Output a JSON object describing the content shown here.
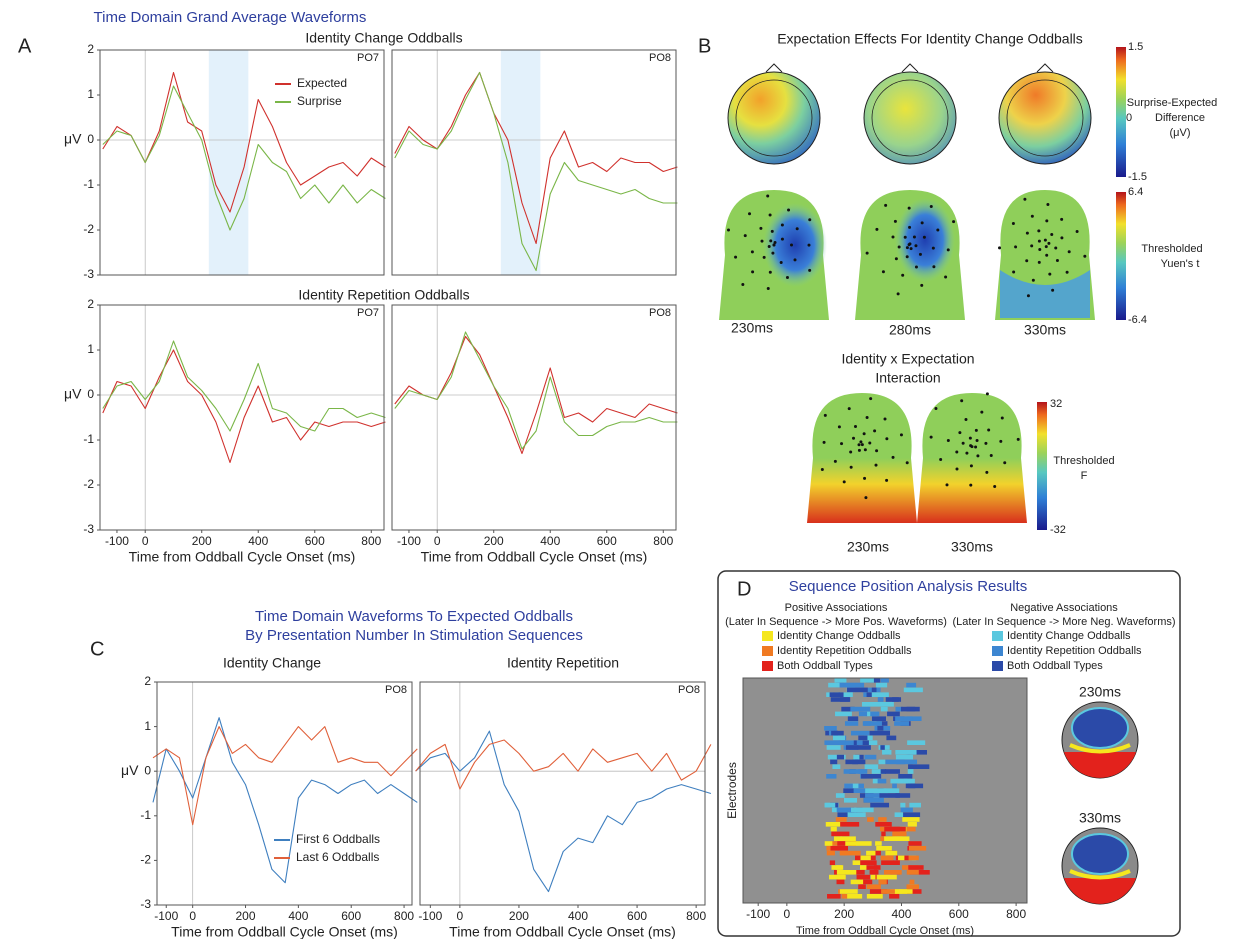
{
  "figure": {
    "a": {
      "label": "A",
      "title": "Time Domain Grand Average Waveforms",
      "groups": [
        "Identity Change Oddballs",
        "Identity Repetition Oddballs"
      ]
    },
    "b": {
      "label": "B",
      "title": "Expectation Effects For Identity Change Oddballs",
      "bar1": {
        "top": "1.5",
        "mid": "0",
        "bottom": "-1.5",
        "lines": [
          "Surprise-Expected",
          "Difference",
          "(μV)"
        ]
      },
      "bar2": {
        "top": "6.4",
        "bottom": "-6.4",
        "lines": [
          "Thresholded",
          "Yuen's t"
        ]
      },
      "times": [
        "230ms",
        "280ms",
        "330ms"
      ],
      "interaction": [
        "Identity x Expectation",
        "Interaction"
      ],
      "bar3": {
        "top": "32",
        "bottom": "-32",
        "lines": [
          "Thresholded",
          "F"
        ]
      },
      "itimes": [
        "230ms",
        "330ms"
      ]
    },
    "c": {
      "label": "C",
      "title": [
        "Time Domain Waveforms To Expected Oddballs",
        "By Presentation Number In Stimulation Sequences"
      ],
      "groups": [
        "Identity Change",
        "Identity Repetition"
      ]
    },
    "d": {
      "label": "D",
      "title": "Sequence Position Analysis Results",
      "pos": [
        "Positive Associations",
        "(Later In Sequence -> More Pos. Waveforms)"
      ],
      "neg": [
        "Negative Associations",
        "(Later In Sequence -> More Neg. Waveforms)"
      ],
      "pos_items": [
        {
          "name": "Identity Change Oddballs",
          "color": "#f5e71e"
        },
        {
          "name": "Identity Repetition Oddballs",
          "color": "#f07a22"
        },
        {
          "name": "Both Oddball Types",
          "color": "#e3221c"
        }
      ],
      "neg_items": [
        {
          "name": "Identity Change Oddballs",
          "color": "#5bc8df"
        },
        {
          "name": "Identity Repetition Oddballs",
          "color": "#3d86d1"
        },
        {
          "name": "Both Oddball Types",
          "color": "#2b4aa8"
        }
      ],
      "times": [
        "230ms",
        "330ms"
      ]
    }
  },
  "chart_data": [
    {
      "type": "line",
      "electrode": "PO7",
      "ylabel": "μV",
      "x": [
        -150,
        -100,
        -50,
        0,
        50,
        100,
        150,
        200,
        250,
        300,
        350,
        400,
        450,
        500,
        550,
        600,
        650,
        700,
        750,
        800,
        850
      ],
      "xlim": [
        -160,
        845
      ],
      "ylim": [
        -3,
        2
      ],
      "yticks": [
        -3,
        -2,
        -1,
        0,
        1,
        2
      ],
      "highlight": [
        225,
        365
      ],
      "legend": "upper right",
      "series": [
        {
          "name": "Expected",
          "color": "#d0312d",
          "values": [
            -0.2,
            0.3,
            0.1,
            -0.5,
            0.2,
            1.5,
            0.4,
            0.2,
            -1.0,
            -1.6,
            -0.6,
            0.9,
            0.3,
            -0.5,
            -1.0,
            -0.8,
            -0.6,
            -0.5,
            -0.8,
            -0.4,
            -0.6
          ]
        },
        {
          "name": "Surprise",
          "color": "#7ab648",
          "values": [
            -0.1,
            0.2,
            0.1,
            -0.5,
            0.1,
            1.2,
            0.6,
            0.0,
            -1.2,
            -2.0,
            -1.3,
            -0.1,
            -0.5,
            -0.7,
            -1.3,
            -1.0,
            -1.4,
            -1.0,
            -1.4,
            -1.1,
            -1.3
          ]
        }
      ]
    },
    {
      "type": "line",
      "electrode": "PO8",
      "x": [
        -150,
        -100,
        -50,
        0,
        50,
        100,
        150,
        200,
        250,
        300,
        350,
        400,
        450,
        500,
        550,
        600,
        650,
        700,
        750,
        800,
        850
      ],
      "xlim": [
        -160,
        845
      ],
      "ylim": [
        -3,
        2
      ],
      "highlight": [
        225,
        365
      ],
      "series": [
        {
          "color": "#d0312d",
          "values": [
            -0.3,
            0.3,
            0.0,
            -0.2,
            0.3,
            1.0,
            1.5,
            0.6,
            0.0,
            -1.4,
            -2.3,
            -0.4,
            0.2,
            -0.6,
            -0.5,
            -0.7,
            -0.4,
            -0.5,
            -0.5,
            -0.7,
            -0.6
          ]
        },
        {
          "color": "#7ab648",
          "values": [
            -0.4,
            0.2,
            -0.1,
            -0.2,
            0.2,
            0.9,
            1.5,
            0.6,
            -0.5,
            -2.3,
            -2.9,
            -1.2,
            -0.5,
            -0.9,
            -1.0,
            -1.1,
            -1.2,
            -1.1,
            -1.3,
            -1.4,
            -1.4
          ]
        }
      ]
    },
    {
      "type": "line",
      "electrode": "PO7",
      "ylabel": "μV",
      "xlabel": "Time from Oddball Cycle Onset (ms)",
      "x": [
        -150,
        -100,
        -50,
        0,
        50,
        100,
        150,
        200,
        250,
        300,
        350,
        400,
        450,
        500,
        550,
        600,
        650,
        700,
        750,
        800,
        850
      ],
      "xlim": [
        -160,
        845
      ],
      "ylim": [
        -3,
        2
      ],
      "yticks": [
        -3,
        -2,
        -1,
        0,
        1,
        2
      ],
      "xticks": [
        -100,
        0,
        200,
        400,
        600,
        800
      ],
      "series": [
        {
          "color": "#d0312d",
          "values": [
            -0.4,
            0.3,
            0.2,
            -0.3,
            0.4,
            1.0,
            0.3,
            0.0,
            -0.6,
            -1.5,
            -0.5,
            0.2,
            -0.6,
            -0.5,
            -1.0,
            -0.6,
            -0.7,
            -0.6,
            -0.6,
            -0.7,
            -0.6
          ]
        },
        {
          "color": "#7ab648",
          "values": [
            -0.3,
            0.2,
            0.3,
            -0.1,
            0.3,
            1.2,
            0.4,
            0.1,
            -0.3,
            -0.8,
            -0.1,
            0.7,
            -0.3,
            -0.4,
            -0.7,
            -0.8,
            -0.3,
            -0.3,
            -0.5,
            -0.4,
            -0.5
          ]
        }
      ]
    },
    {
      "type": "line",
      "electrode": "PO8",
      "xlabel": "Time from Oddball Cycle Onset (ms)",
      "x": [
        -150,
        -100,
        -50,
        0,
        50,
        100,
        150,
        200,
        250,
        300,
        350,
        400,
        450,
        500,
        550,
        600,
        650,
        700,
        750,
        800,
        850
      ],
      "xlim": [
        -160,
        845
      ],
      "ylim": [
        -3,
        2
      ],
      "xticks": [
        -100,
        0,
        200,
        400,
        600,
        800
      ],
      "series": [
        {
          "color": "#d0312d",
          "values": [
            -0.2,
            0.2,
            0.0,
            -0.1,
            0.5,
            1.3,
            0.9,
            0.2,
            -0.5,
            -1.3,
            -0.4,
            0.6,
            -0.5,
            -0.4,
            -0.6,
            -0.3,
            -0.4,
            -0.5,
            -0.2,
            -0.3,
            -0.4
          ]
        },
        {
          "color": "#7ab648",
          "values": [
            -0.3,
            0.1,
            0.0,
            -0.1,
            0.4,
            1.4,
            0.8,
            0.2,
            -0.3,
            -1.2,
            -0.8,
            0.4,
            -0.6,
            -0.9,
            -0.9,
            -0.7,
            -0.6,
            -0.6,
            -0.5,
            -0.6,
            -0.6
          ]
        }
      ]
    },
    {
      "type": "line",
      "electrode": "PO8",
      "ylabel": "μV",
      "xlabel": "Time from Oddball Cycle Onset (ms)",
      "x": [
        -150,
        -100,
        -50,
        0,
        50,
        100,
        150,
        200,
        250,
        300,
        350,
        400,
        450,
        500,
        550,
        600,
        650,
        700,
        750,
        800,
        850
      ],
      "xlim": [
        -135,
        830
      ],
      "ylim": [
        -3,
        2
      ],
      "yticks": [
        -3,
        -2,
        -1,
        0,
        1,
        2
      ],
      "xticks": [
        -100,
        0,
        200,
        400,
        600,
        800
      ],
      "legend": "lower right",
      "series": [
        {
          "name": "First 6 Oddballs",
          "color": "#3f7fbf",
          "values": [
            -0.7,
            0.5,
            0.0,
            -0.6,
            0.3,
            1.2,
            0.2,
            -0.3,
            -1.2,
            -2.2,
            -2.5,
            -0.6,
            -0.2,
            -0.3,
            -0.5,
            -0.3,
            -0.2,
            -0.5,
            -0.3,
            -0.5,
            -0.7
          ]
        },
        {
          "name": "Last 6 Oddballs",
          "color": "#e0603a",
          "values": [
            0.3,
            0.5,
            0.3,
            -1.2,
            0.3,
            1.0,
            0.4,
            0.6,
            0.3,
            0.2,
            0.6,
            1.0,
            0.7,
            1.0,
            0.2,
            0.3,
            0.2,
            0.2,
            -0.1,
            0.2,
            0.5
          ]
        }
      ]
    },
    {
      "type": "line",
      "electrode": "PO8",
      "xlabel": "Time from Oddball Cycle Onset (ms)",
      "x": [
        -150,
        -100,
        -50,
        0,
        50,
        100,
        150,
        200,
        250,
        300,
        350,
        400,
        450,
        500,
        550,
        600,
        650,
        700,
        750,
        800,
        850
      ],
      "xlim": [
        -135,
        830
      ],
      "ylim": [
        -3,
        2
      ],
      "xticks": [
        -100,
        0,
        200,
        400,
        600,
        800
      ],
      "series": [
        {
          "color": "#3f7fbf",
          "values": [
            0.0,
            0.3,
            0.4,
            0.0,
            0.3,
            0.9,
            -0.3,
            -0.9,
            -2.2,
            -2.7,
            -1.8,
            -1.5,
            -1.6,
            -1.0,
            -1.2,
            -0.7,
            -0.6,
            -0.4,
            -0.3,
            -0.4,
            -0.5
          ]
        },
        {
          "color": "#e0603a",
          "values": [
            0.0,
            0.4,
            0.6,
            -0.4,
            0.2,
            0.6,
            0.7,
            0.4,
            0.0,
            0.1,
            0.4,
            0.0,
            0.5,
            0.2,
            0.3,
            0.4,
            0.0,
            0.4,
            -0.2,
            0.0,
            0.6
          ]
        }
      ]
    },
    {
      "type": "raster",
      "ylabel": "Electrodes",
      "xlabel": "Time from Oddball Cycle Onset (ms)",
      "xlim": [
        -153,
        838
      ],
      "xticks": [
        -100,
        0,
        200,
        400,
        600,
        800
      ]
    }
  ]
}
